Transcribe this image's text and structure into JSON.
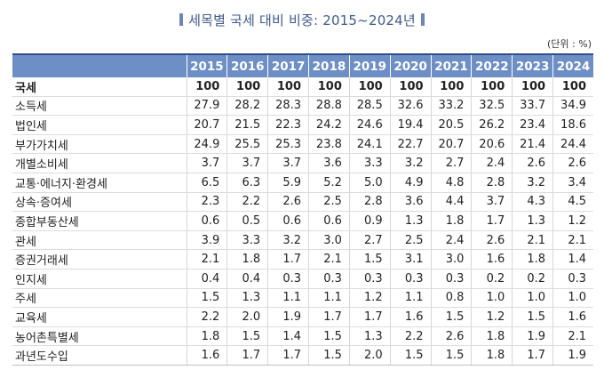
{
  "title": "세목별 국세 대비 비중: 2015~2024년",
  "unit": "(단위 : %)",
  "table": {
    "corner": "",
    "years": [
      "2015",
      "2016",
      "2017",
      "2018",
      "2019",
      "2020",
      "2021",
      "2022",
      "2023",
      "2024"
    ],
    "rows": [
      {
        "label": "국세",
        "values": [
          "100",
          "100",
          "100",
          "100",
          "100",
          "100",
          "100",
          "100",
          "100",
          "100"
        ]
      },
      {
        "label": "소득세",
        "values": [
          "27.9",
          "28.2",
          "28.3",
          "28.8",
          "28.5",
          "32.6",
          "33.2",
          "32.5",
          "33.7",
          "34.9"
        ]
      },
      {
        "label": "법인세",
        "values": [
          "20.7",
          "21.5",
          "22.3",
          "24.2",
          "24.6",
          "19.4",
          "20.5",
          "26.2",
          "23.4",
          "18.6"
        ]
      },
      {
        "label": "부가가치세",
        "values": [
          "24.9",
          "25.5",
          "25.3",
          "23.8",
          "24.1",
          "22.7",
          "20.7",
          "20.6",
          "21.4",
          "24.4"
        ]
      },
      {
        "label": "개별소비세",
        "values": [
          "3.7",
          "3.7",
          "3.7",
          "3.6",
          "3.3",
          "3.2",
          "2.7",
          "2.4",
          "2.6",
          "2.6"
        ]
      },
      {
        "label": "교통·에너지·환경세",
        "values": [
          "6.5",
          "6.3",
          "5.9",
          "5.2",
          "5.0",
          "4.9",
          "4.8",
          "2.8",
          "3.2",
          "3.4"
        ]
      },
      {
        "label": "상속·증여세",
        "values": [
          "2.3",
          "2.2",
          "2.6",
          "2.5",
          "2.8",
          "3.6",
          "4.4",
          "3.7",
          "4.3",
          "4.5"
        ]
      },
      {
        "label": "종합부동산세",
        "values": [
          "0.6",
          "0.5",
          "0.6",
          "0.6",
          "0.9",
          "1.3",
          "1.8",
          "1.7",
          "1.3",
          "1.2"
        ]
      },
      {
        "label": "관세",
        "values": [
          "3.9",
          "3.3",
          "3.2",
          "3.0",
          "2.7",
          "2.5",
          "2.4",
          "2.6",
          "2.1",
          "2.1"
        ]
      },
      {
        "label": "증권거래세",
        "values": [
          "2.1",
          "1.8",
          "1.7",
          "2.1",
          "1.5",
          "3.1",
          "3.0",
          "1.6",
          "1.8",
          "1.4"
        ]
      },
      {
        "label": "인지세",
        "values": [
          "0.4",
          "0.4",
          "0.3",
          "0.3",
          "0.3",
          "0.3",
          "0.3",
          "0.2",
          "0.2",
          "0.3"
        ]
      },
      {
        "label": "주세",
        "values": [
          "1.5",
          "1.3",
          "1.1",
          "1.1",
          "1.2",
          "1.1",
          "0.8",
          "1.0",
          "1.0",
          "1.0"
        ]
      },
      {
        "label": "교육세",
        "values": [
          "2.2",
          "2.0",
          "1.9",
          "1.7",
          "1.7",
          "1.6",
          "1.5",
          "1.2",
          "1.5",
          "1.6"
        ]
      },
      {
        "label": "농어촌특별세",
        "values": [
          "1.8",
          "1.5",
          "1.4",
          "1.5",
          "1.3",
          "2.2",
          "2.6",
          "1.8",
          "1.9",
          "2.1"
        ]
      },
      {
        "label": "과년도수입",
        "values": [
          "1.6",
          "1.7",
          "1.7",
          "1.5",
          "2.0",
          "1.5",
          "1.5",
          "1.8",
          "1.7",
          "1.9"
        ]
      }
    ]
  }
}
